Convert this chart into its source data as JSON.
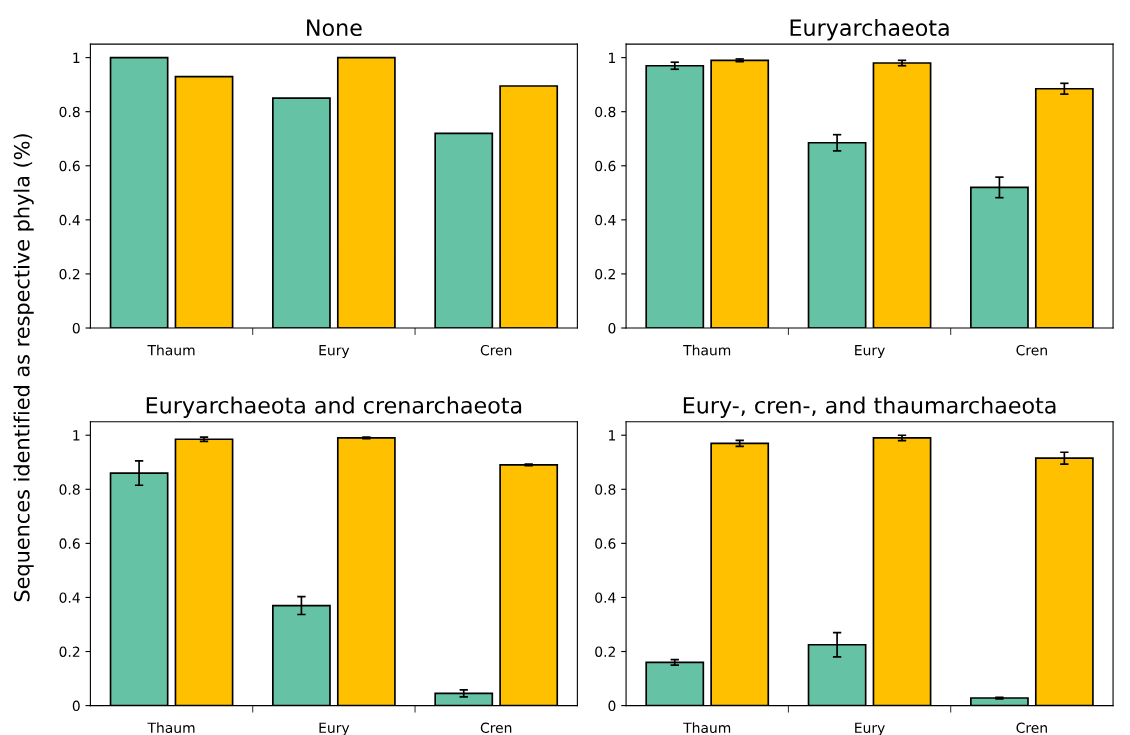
{
  "chart_data": [
    {
      "type": "bar",
      "title": "None",
      "ylabel": "Sequences identified as respective phyla (%)",
      "categories": [
        "Thaum",
        "Eury",
        "Cren"
      ],
      "ylim": [
        0,
        1.05
      ],
      "yticks": [
        0,
        0.2,
        0.4,
        0.6,
        0.8,
        1
      ],
      "grid": false,
      "legend": false,
      "series": [
        {
          "color": "#66c2a5",
          "values": [
            1.0,
            0.85,
            0.72
          ]
        },
        {
          "color": "#ffc000",
          "values": [
            0.93,
            1.0,
            0.895
          ]
        }
      ]
    },
    {
      "type": "bar",
      "title": "Euryarchaeota",
      "categories": [
        "Thaum",
        "Eury",
        "Cren"
      ],
      "ylim": [
        0,
        1.05
      ],
      "yticks": [
        0,
        0.2,
        0.4,
        0.6,
        0.8,
        1
      ],
      "grid": false,
      "legend": false,
      "series": [
        {
          "color": "#66c2a5",
          "values": [
            0.97,
            0.685,
            0.52
          ],
          "errors": [
            0.013,
            0.03,
            0.038
          ]
        },
        {
          "color": "#ffc000",
          "values": [
            0.99,
            0.98,
            0.885
          ],
          "errors": [
            0.005,
            0.01,
            0.02
          ]
        }
      ]
    },
    {
      "type": "bar",
      "title": "Euryarchaeota and crenarchaeota",
      "categories": [
        "Thaum",
        "Eury",
        "Cren"
      ],
      "ylim": [
        0,
        1.05
      ],
      "yticks": [
        0,
        0.2,
        0.4,
        0.6,
        0.8,
        1
      ],
      "grid": false,
      "legend": false,
      "series": [
        {
          "color": "#66c2a5",
          "values": [
            0.86,
            0.37,
            0.045
          ],
          "errors": [
            0.045,
            0.033,
            0.013
          ]
        },
        {
          "color": "#ffc000",
          "values": [
            0.985,
            0.99,
            0.89
          ],
          "errors": [
            0.008,
            0.003,
            0.003
          ]
        }
      ]
    },
    {
      "type": "bar",
      "title": "Eury-, cren-, and thaumarchaeota",
      "categories": [
        "Thaum",
        "Eury",
        "Cren"
      ],
      "ylim": [
        0,
        1.05
      ],
      "yticks": [
        0,
        0.2,
        0.4,
        0.6,
        0.8,
        1
      ],
      "grid": false,
      "legend": false,
      "series": [
        {
          "color": "#66c2a5",
          "values": [
            0.16,
            0.225,
            0.028
          ],
          "errors": [
            0.01,
            0.045,
            0.003
          ]
        },
        {
          "color": "#ffc000",
          "values": [
            0.97,
            0.99,
            0.915
          ],
          "errors": [
            0.011,
            0.01,
            0.022
          ]
        }
      ]
    }
  ]
}
